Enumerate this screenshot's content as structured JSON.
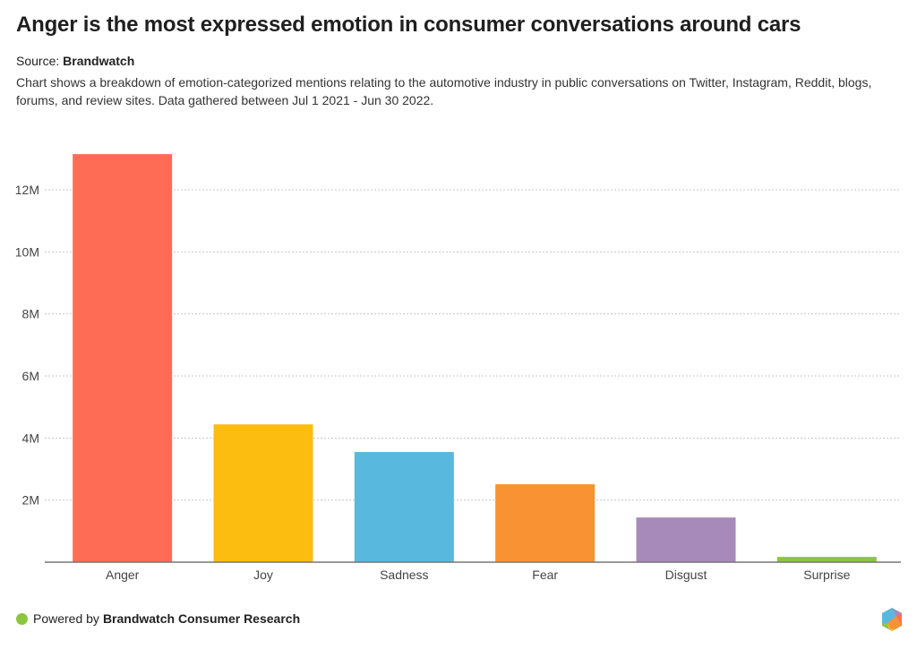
{
  "header": {
    "title": "Anger is the most expressed emotion in consumer conversations around cars",
    "source_label": "Source:",
    "source_name": "Brandwatch",
    "description": "Chart shows a breakdown of emotion-categorized mentions relating to the automotive industry in public conversations on Twitter, Instagram, Reddit, blogs, forums, and review sites. Data gathered between Jul 1 2021 - Jun 30 2022."
  },
  "footer": {
    "powered_by": "Powered by",
    "brand": "Brandwatch Consumer Research",
    "logo_icon": "hexagon-logo-icon"
  },
  "chart_data": {
    "type": "bar",
    "title": "Anger is the most expressed emotion in consumer conversations around cars",
    "xlabel": "",
    "ylabel": "",
    "categories": [
      "Anger",
      "Joy",
      "Sadness",
      "Fear",
      "Disgust",
      "Surprise"
    ],
    "values": [
      13150000,
      4440000,
      3550000,
      2510000,
      1440000,
      170000
    ],
    "colors": [
      "#ff6c55",
      "#fdbd10",
      "#58b8de",
      "#f89232",
      "#a78aba",
      "#8cc63f"
    ],
    "ylim": [
      0,
      12000000
    ],
    "yticks": [
      2000000,
      4000000,
      6000000,
      8000000,
      10000000,
      12000000
    ],
    "ytick_labels": [
      "2M",
      "4M",
      "6M",
      "8M",
      "10M",
      "12M"
    ],
    "grid": true,
    "legend": "none"
  }
}
